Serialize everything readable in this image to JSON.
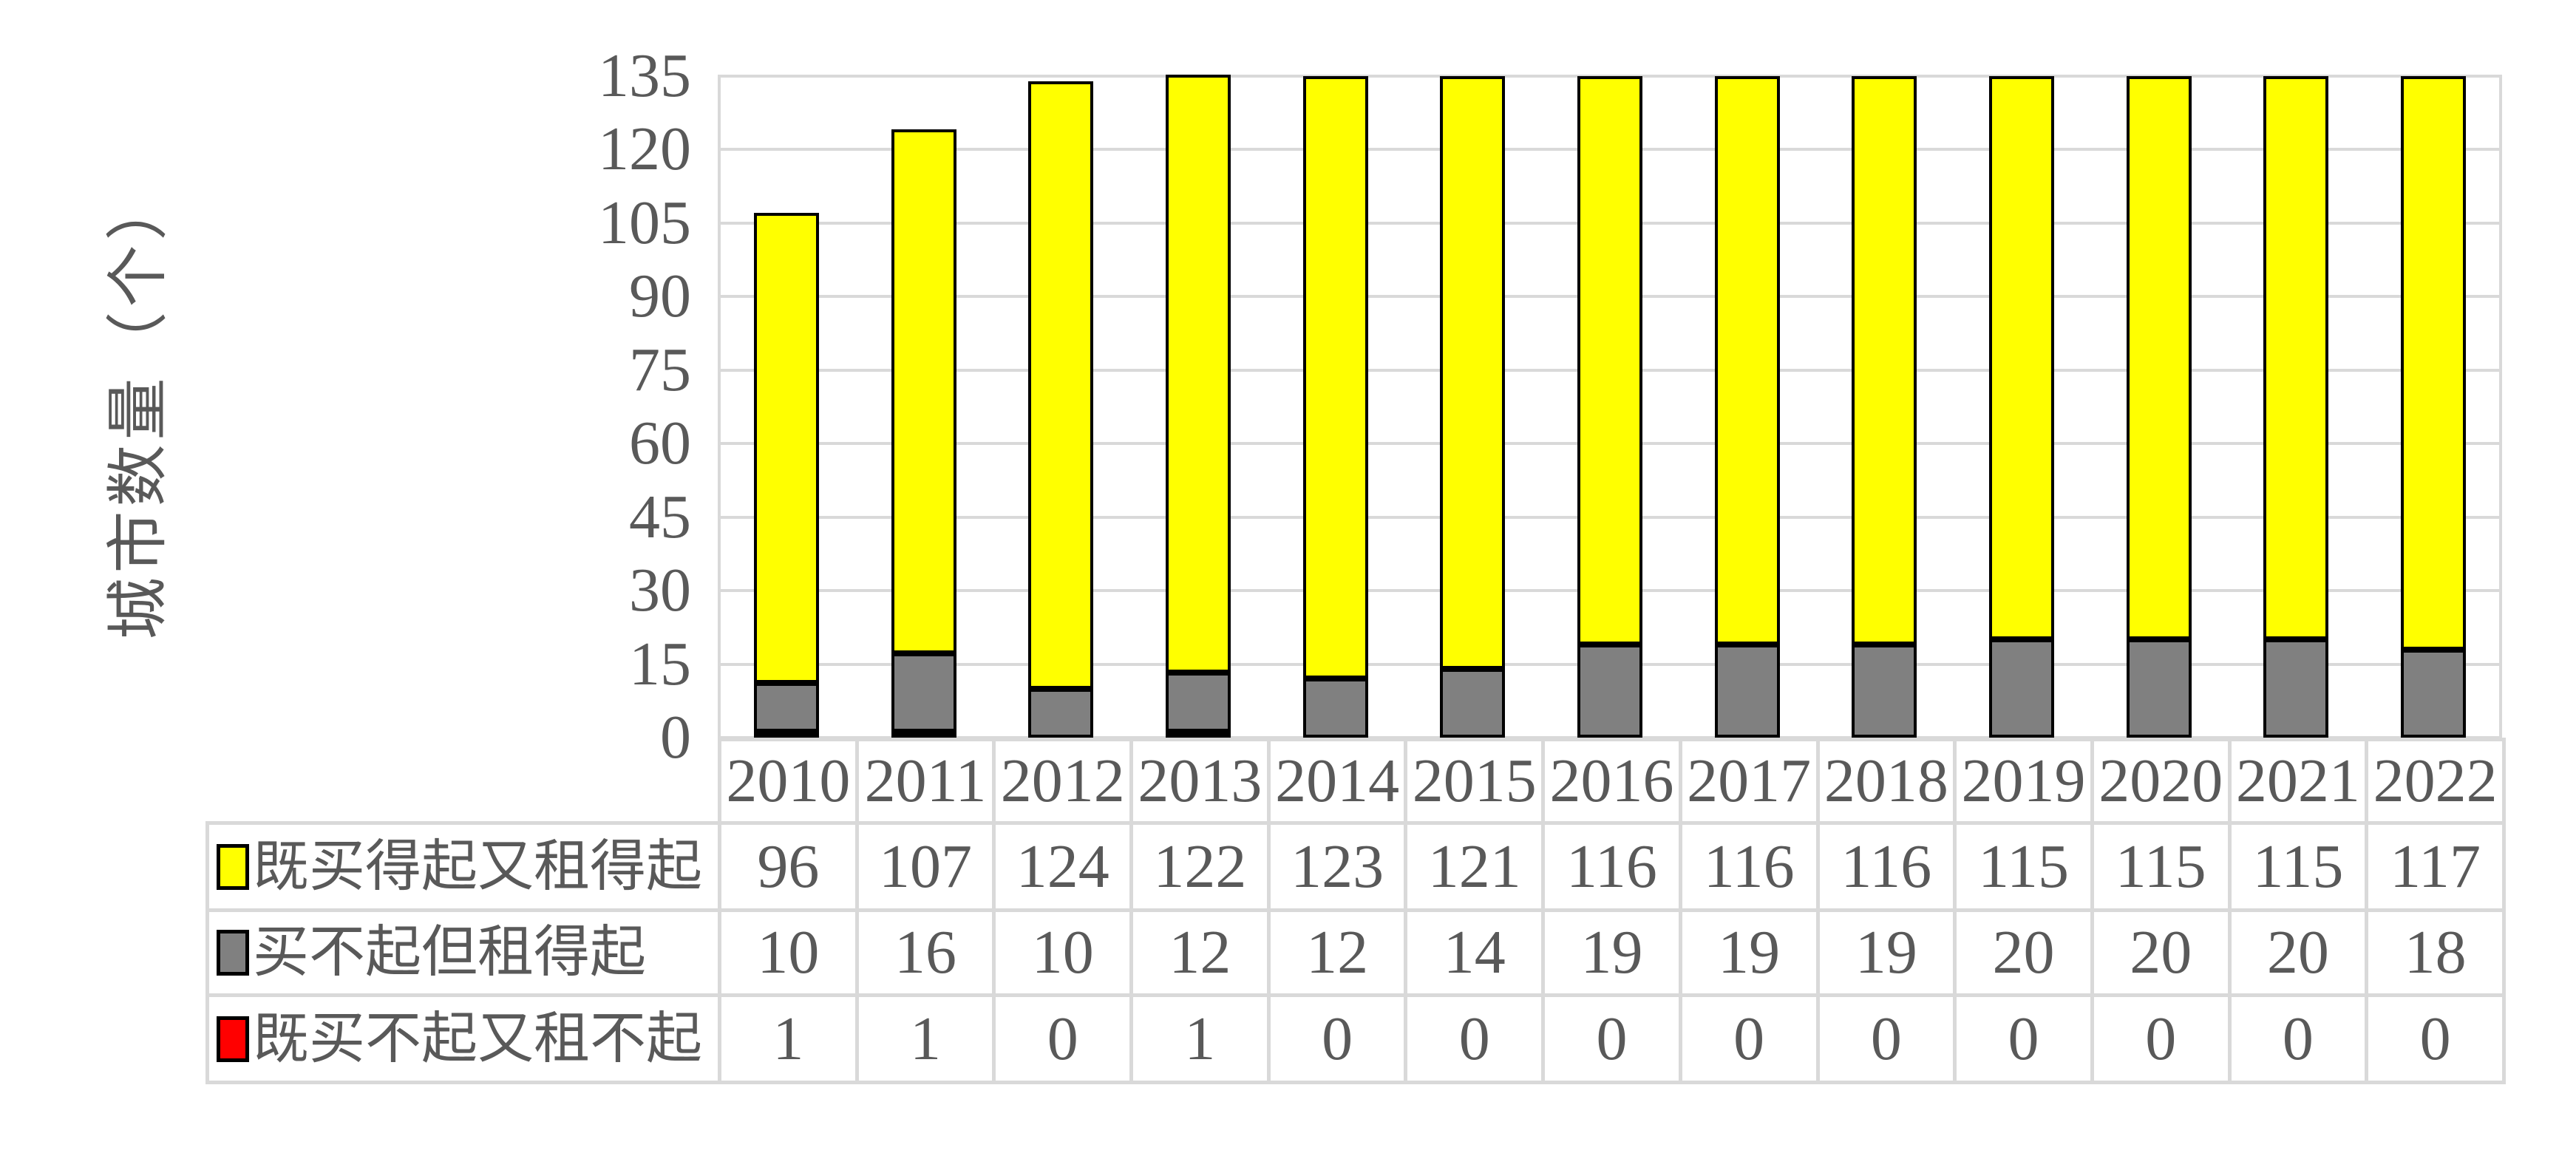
{
  "chart": {
    "y_axis_title": "城市数量（个）",
    "y_ticks": [
      135,
      120,
      105,
      90,
      75,
      60,
      45,
      30,
      15,
      0
    ]
  },
  "chart_data": {
    "type": "bar",
    "stacked": true,
    "title": "",
    "xlabel": "",
    "ylabel": "城市数量（个）",
    "ylim": [
      0,
      135
    ],
    "y_tick_step": 15,
    "grid": true,
    "legend_position": "left-column-of-data-table",
    "categories": [
      "2010",
      "2011",
      "2012",
      "2013",
      "2014",
      "2015",
      "2016",
      "2017",
      "2018",
      "2019",
      "2020",
      "2021",
      "2022"
    ],
    "series": [
      {
        "name": "既买得起又租得起",
        "color": "#FFFF00",
        "values": [
          96,
          107,
          124,
          122,
          123,
          121,
          116,
          116,
          116,
          115,
          115,
          115,
          117
        ]
      },
      {
        "name": "买不起但租得起",
        "color": "#808080",
        "values": [
          10,
          16,
          10,
          12,
          12,
          14,
          19,
          19,
          19,
          20,
          20,
          20,
          18
        ]
      },
      {
        "name": "既买不起又租不起",
        "color": "#FF0000",
        "values": [
          1,
          1,
          0,
          1,
          0,
          0,
          0,
          0,
          0,
          0,
          0,
          0,
          0
        ]
      }
    ],
    "stack_order_bottom_to_top": [
      2,
      1,
      0
    ]
  },
  "colors": {
    "grid": "#D9D9D9",
    "text": "#595959",
    "background": "#FFFFFF",
    "bar_border": "#000000"
  }
}
